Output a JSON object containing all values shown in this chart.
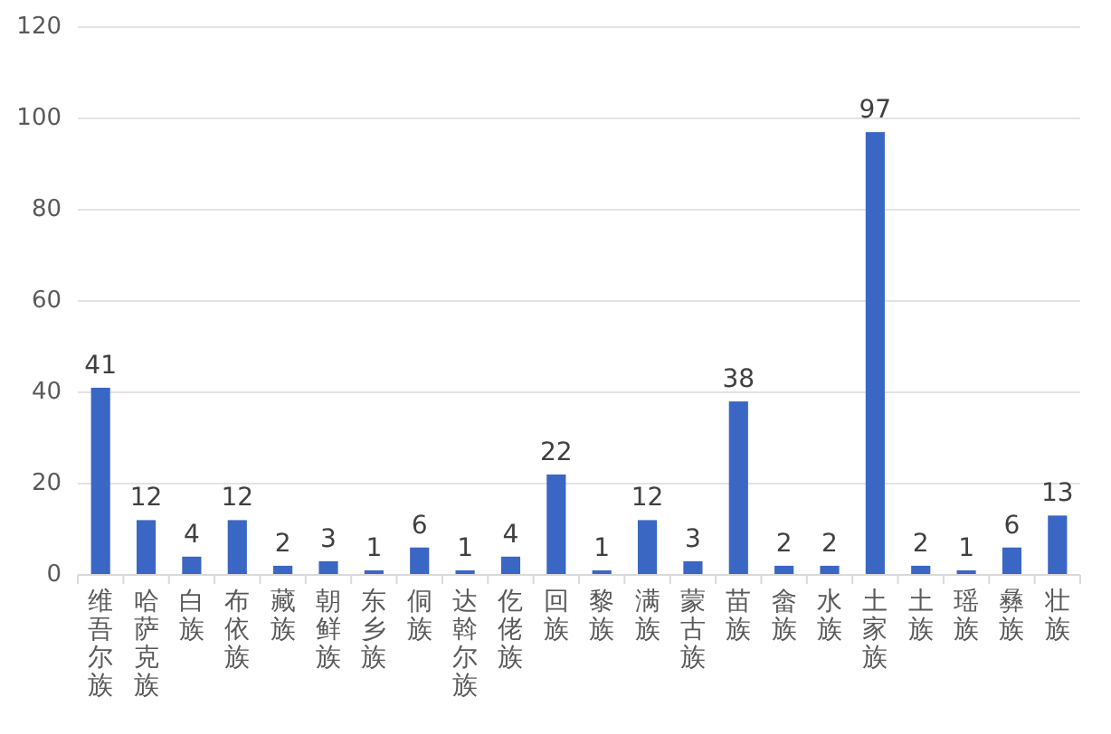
{
  "chart_data": {
    "type": "bar",
    "categories": [
      "维吾尔族",
      "哈萨克族",
      "白族",
      "布依族",
      "藏族",
      "朝鲜族",
      "东乡族",
      "侗族",
      "达斡尔族",
      "仡佬族",
      "回族",
      "黎族",
      "满族",
      "蒙古族",
      "苗族",
      "畲族",
      "水族",
      "土家族",
      "土族",
      "瑶族",
      "彝族",
      "壮族"
    ],
    "values": [
      41,
      12,
      4,
      12,
      2,
      3,
      1,
      6,
      1,
      4,
      22,
      1,
      12,
      3,
      38,
      2,
      2,
      97,
      2,
      1,
      6,
      13
    ],
    "color": "#3a66c4",
    "ylim": [
      0,
      120
    ],
    "yticks": [
      0,
      20,
      40,
      60,
      80,
      100,
      120
    ],
    "grid": "y",
    "data_labels": true
  }
}
